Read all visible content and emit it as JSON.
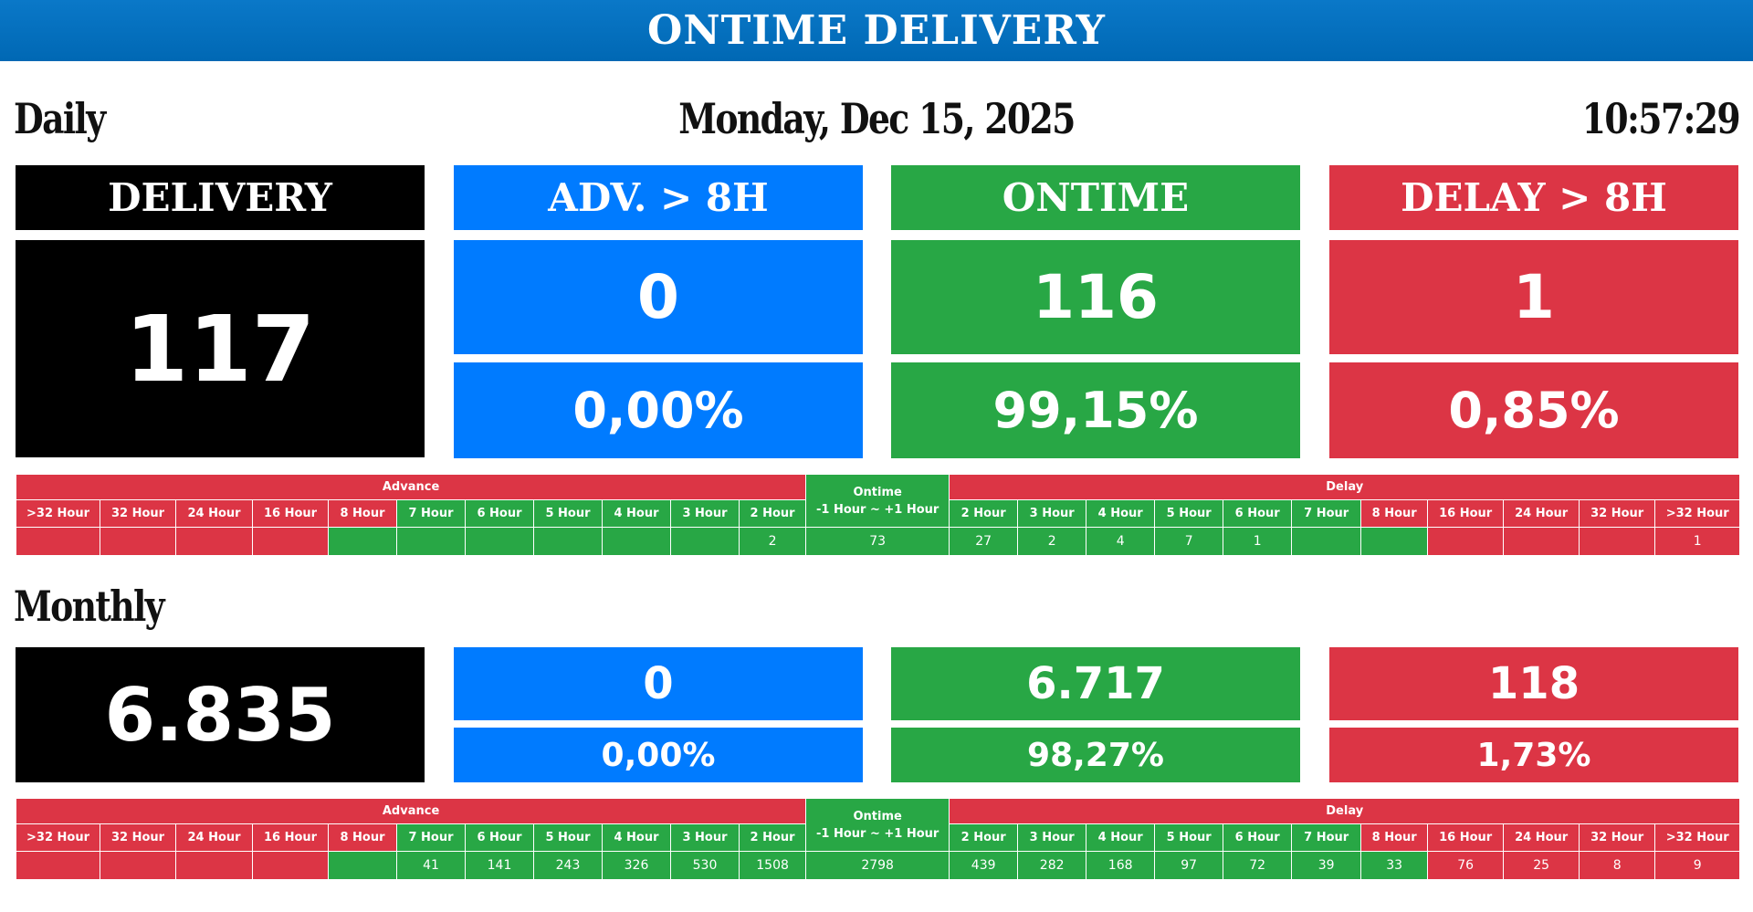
{
  "header": {
    "title": "ONTIME DELIVERY"
  },
  "columns": {
    "advance_label": "Advance",
    "ontime_label": "Ontime",
    "ontime_range": "-1 Hour ~ +1 Hour",
    "delay_label": "Delay",
    "advance": [
      ">32 Hour",
      "32 Hour",
      "24 Hour",
      "16 Hour",
      "8 Hour",
      "7 Hour",
      "6 Hour",
      "5 Hour",
      "4 Hour",
      "3 Hour",
      "2 Hour"
    ],
    "delay": [
      "2 Hour",
      "3 Hour",
      "4 Hour",
      "5 Hour",
      "6 Hour",
      "7 Hour",
      "8 Hour",
      "16 Hour",
      "24 Hour",
      "32 Hour",
      ">32 Hour"
    ]
  },
  "daily": {
    "label": "Daily",
    "date": "Monday, Dec 15, 2025",
    "time": "10:57:29",
    "cards": [
      {
        "title": "DELIVERY",
        "count": 117
      },
      {
        "title": "ADV. > 8H",
        "count": 0,
        "percent": "0,00%"
      },
      {
        "title": "ONTIME",
        "count": 116,
        "percent": "99,15%"
      },
      {
        "title": "DELAY > 8H",
        "count": 1,
        "percent": "0,85%"
      }
    ],
    "table": {
      "advance": [
        null,
        null,
        null,
        null,
        null,
        null,
        null,
        null,
        null,
        null,
        2
      ],
      "ontime": 73,
      "delay": [
        27,
        2,
        4,
        7,
        1,
        null,
        null,
        null,
        null,
        null,
        1
      ]
    }
  },
  "monthly": {
    "label": "Monthly",
    "cards": [
      {
        "count": "6.835"
      },
      {
        "count": 0,
        "percent": "0,00%"
      },
      {
        "count": "6.717",
        "percent": "98,27%"
      },
      {
        "count": 118,
        "percent": "1,73%"
      }
    ],
    "table": {
      "advance": [
        null,
        null,
        null,
        null,
        null,
        41,
        141,
        243,
        326,
        530,
        1508
      ],
      "ontime": 2798,
      "delay": [
        439,
        282,
        168,
        97,
        72,
        39,
        33,
        76,
        25,
        8,
        9
      ]
    }
  }
}
